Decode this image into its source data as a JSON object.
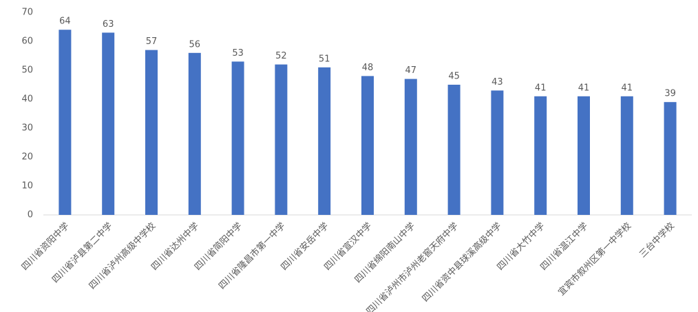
{
  "chart_data": {
    "type": "bar",
    "categories": [
      "四川省资阳中学",
      "四川省泸县第二中学",
      "四川省泸州高级中学校",
      "四川省达州中学",
      "四川省简阳中学",
      "四川省隆昌市第一中学",
      "四川省安岳中学",
      "四川省宣汉中学",
      "四川省绵阳南山中学",
      "四川省泸州市泸州老窖天府中学",
      "四川省资中县球溪高级中学",
      "四川省大竹中学",
      "四川省温江中学",
      "宜宾市叙州区第一中学校",
      "三台中学校"
    ],
    "values": [
      64,
      63,
      57,
      56,
      53,
      52,
      51,
      48,
      47,
      45,
      43,
      41,
      41,
      41,
      39
    ],
    "color": "#4472c4",
    "ylim": [
      0,
      70
    ],
    "yticks": [
      0,
      10,
      20,
      30,
      40,
      50,
      60,
      70
    ],
    "grid": false
  }
}
